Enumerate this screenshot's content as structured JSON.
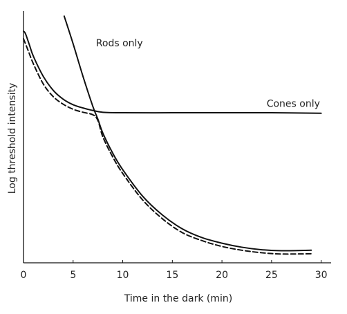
{
  "chart_data": {
    "type": "line",
    "title": "",
    "xlabel": "Time in the dark (min)",
    "ylabel": "Log threshold intensity",
    "xlim": [
      0,
      31
    ],
    "ylim": [
      0,
      100
    ],
    "x_ticks": [
      "0",
      "5",
      "10",
      "15",
      "20",
      "25",
      "30"
    ],
    "y_ticks_labeled": false,
    "grid": false,
    "legend": "none",
    "annotations": [
      {
        "text": "Rods only",
        "x": 7.3,
        "y": 86
      },
      {
        "text": "Cones only",
        "x": 24.5,
        "y": 62
      }
    ],
    "series": [
      {
        "name": "Rods only",
        "style": "solid",
        "color": "#111111",
        "points": [
          [
            4.1,
            98
          ],
          [
            5,
            87
          ],
          [
            6,
            74
          ],
          [
            7,
            62
          ],
          [
            7.5,
            57
          ],
          [
            8,
            51.5
          ],
          [
            9,
            43.5
          ],
          [
            10,
            37
          ],
          [
            12,
            26.5
          ],
          [
            14,
            19
          ],
          [
            16,
            13.5
          ],
          [
            18,
            10
          ],
          [
            20,
            7.8
          ],
          [
            22,
            6.2
          ],
          [
            24,
            5.2
          ],
          [
            26,
            4.8
          ],
          [
            29,
            5
          ]
        ]
      },
      {
        "name": "Cones only",
        "style": "solid",
        "color": "#111111",
        "points": [
          [
            0,
            92
          ],
          [
            0.2,
            91
          ],
          [
            0.6,
            86.5
          ],
          [
            1,
            82
          ],
          [
            2,
            74
          ],
          [
            3,
            68.5
          ],
          [
            4,
            65
          ],
          [
            5,
            62.8
          ],
          [
            6,
            61.5
          ],
          [
            7,
            60.5
          ],
          [
            8,
            59.8
          ],
          [
            10,
            59.6
          ],
          [
            15,
            59.6
          ],
          [
            20,
            59.6
          ],
          [
            25,
            59.6
          ],
          [
            30,
            59.4
          ]
        ]
      },
      {
        "name": "",
        "style": "dashed",
        "color": "#111111",
        "points": [
          [
            0,
            89
          ],
          [
            0.5,
            84
          ],
          [
            1,
            79
          ],
          [
            2,
            71
          ],
          [
            3,
            66
          ],
          [
            4,
            63
          ],
          [
            5,
            61
          ],
          [
            6,
            59.8
          ],
          [
            7,
            58.8
          ],
          [
            7.5,
            56.5
          ],
          [
            8,
            50
          ],
          [
            9,
            42
          ],
          [
            10,
            35.5
          ],
          [
            12,
            25
          ],
          [
            14,
            17.5
          ],
          [
            16,
            12
          ],
          [
            18,
            8.8
          ],
          [
            20,
            6.5
          ],
          [
            22,
            5
          ],
          [
            24,
            4
          ],
          [
            26,
            3.5
          ],
          [
            29,
            3.6
          ]
        ]
      }
    ]
  }
}
